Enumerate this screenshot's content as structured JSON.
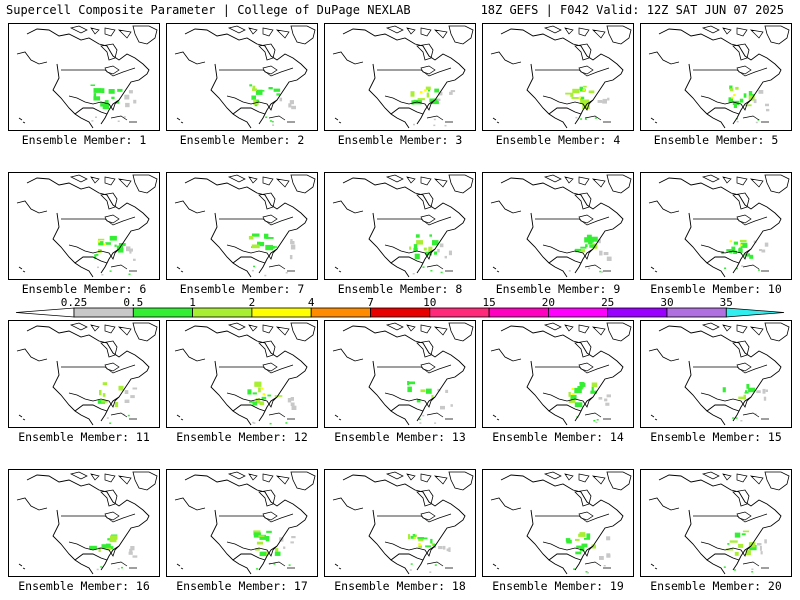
{
  "header": {
    "title": "Supercell Composite Parameter | College of DuPage NEXLAB",
    "run_info": "18Z GEFS | F042 Valid: 12Z SAT JUN 07 2025"
  },
  "map": {
    "parameter": "Supercell Composite Parameter",
    "model": "GEFS",
    "run": "18Z",
    "forecast_hour": "F042",
    "valid": "12Z SAT JUN 07 2025",
    "member_label_prefix": "Ensemble Member: ",
    "members": [
      {
        "label": "Ensemble Member: 1",
        "coverage": "moderate",
        "max_level": "1-2"
      },
      {
        "label": "Ensemble Member: 2",
        "coverage": "moderate",
        "max_level": "1-2"
      },
      {
        "label": "Ensemble Member: 3",
        "coverage": "moderate",
        "max_level": "2-4"
      },
      {
        "label": "Ensemble Member: 4",
        "coverage": "moderate",
        "max_level": "2-4"
      },
      {
        "label": "Ensemble Member: 5",
        "coverage": "moderate",
        "max_level": "2-4"
      },
      {
        "label": "Ensemble Member: 6",
        "coverage": "moderate",
        "max_level": "2-4"
      },
      {
        "label": "Ensemble Member: 7",
        "coverage": "moderate",
        "max_level": "1-2"
      },
      {
        "label": "Ensemble Member: 8",
        "coverage": "moderate",
        "max_level": "1-2"
      },
      {
        "label": "Ensemble Member: 9",
        "coverage": "moderate",
        "max_level": "1-2"
      },
      {
        "label": "Ensemble Member: 10",
        "coverage": "moderate",
        "max_level": "2-4"
      },
      {
        "label": "Ensemble Member: 11",
        "coverage": "light",
        "max_level": "1-2"
      },
      {
        "label": "Ensemble Member: 12",
        "coverage": "moderate",
        "max_level": "2-4"
      },
      {
        "label": "Ensemble Member: 13",
        "coverage": "light",
        "max_level": "1-2"
      },
      {
        "label": "Ensemble Member: 14",
        "coverage": "moderate",
        "max_level": "2-4"
      },
      {
        "label": "Ensemble Member: 15",
        "coverage": "light",
        "max_level": "1-2"
      },
      {
        "label": "Ensemble Member: 16",
        "coverage": "moderate",
        "max_level": "1-2"
      },
      {
        "label": "Ensemble Member: 17",
        "coverage": "moderate",
        "max_level": "1-2"
      },
      {
        "label": "Ensemble Member: 18",
        "coverage": "moderate",
        "max_level": "2-4"
      },
      {
        "label": "Ensemble Member: 19",
        "coverage": "moderate",
        "max_level": "1-2"
      },
      {
        "label": "Ensemble Member: 20",
        "coverage": "moderate",
        "max_level": "1-2"
      }
    ]
  },
  "legend": {
    "levels": [
      "0.25",
      "0.5",
      "1",
      "2",
      "4",
      "7",
      "10",
      "15",
      "20",
      "25",
      "30",
      "35"
    ],
    "colors": [
      "#ffffff",
      "#c8c8c8",
      "#33ee33",
      "#a8ee33",
      "#ffff00",
      "#ff8c00",
      "#e80000",
      "#ff2a7a",
      "#ff00c0",
      "#ff00ff",
      "#9a00ff",
      "#b070e0",
      "#33eeee"
    ]
  }
}
